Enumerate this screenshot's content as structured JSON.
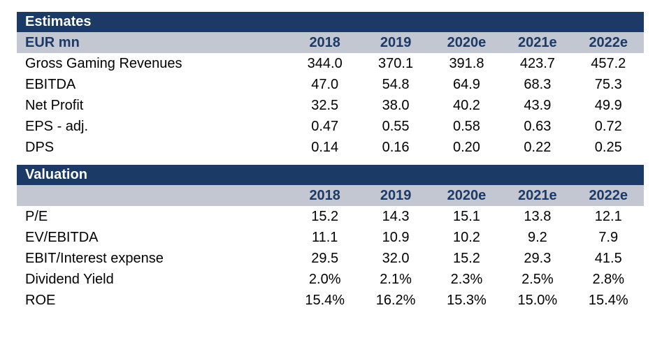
{
  "estimates": {
    "title": "Estimates",
    "header_label": "EUR mn",
    "years": [
      "2018",
      "2019",
      "2020e",
      "2021e",
      "2022e"
    ],
    "rows": [
      {
        "label": "Gross Gaming Revenues",
        "values": [
          "344.0",
          "370.1",
          "391.8",
          "423.7",
          "457.2"
        ]
      },
      {
        "label": "EBITDA",
        "values": [
          "47.0",
          "54.8",
          "64.9",
          "68.3",
          "75.3"
        ]
      },
      {
        "label": "Net Profit",
        "values": [
          "32.5",
          "38.0",
          "40.2",
          "43.9",
          "49.9"
        ]
      },
      {
        "label": "EPS - adj.",
        "values": [
          "0.47",
          "0.55",
          "0.58",
          "0.63",
          "0.72"
        ]
      },
      {
        "label": "DPS",
        "values": [
          "0.14",
          "0.16",
          "0.20",
          "0.22",
          "0.25"
        ]
      }
    ]
  },
  "valuation": {
    "title": "Valuation",
    "header_label": "",
    "years": [
      "2018",
      "2019",
      "2020e",
      "2021e",
      "2022e"
    ],
    "rows": [
      {
        "label": "P/E",
        "values": [
          "15.2",
          "14.3",
          "15.1",
          "13.8",
          "12.1"
        ]
      },
      {
        "label": "EV/EBITDA",
        "values": [
          "11.1",
          "10.9",
          "10.2",
          "9.2",
          "7.9"
        ]
      },
      {
        "label": "EBIT/Interest expense",
        "values": [
          "29.5",
          "32.0",
          "15.2",
          "29.3",
          "41.5"
        ]
      },
      {
        "label": "Dividend Yield",
        "values": [
          "2.0%",
          "2.1%",
          "2.3%",
          "2.5%",
          "2.8%"
        ]
      },
      {
        "label": "ROE",
        "values": [
          "15.4%",
          "16.2%",
          "15.3%",
          "15.0%",
          "15.4%"
        ]
      }
    ]
  },
  "colors": {
    "band": "#1b3a66",
    "header": "#c3c7d1"
  }
}
